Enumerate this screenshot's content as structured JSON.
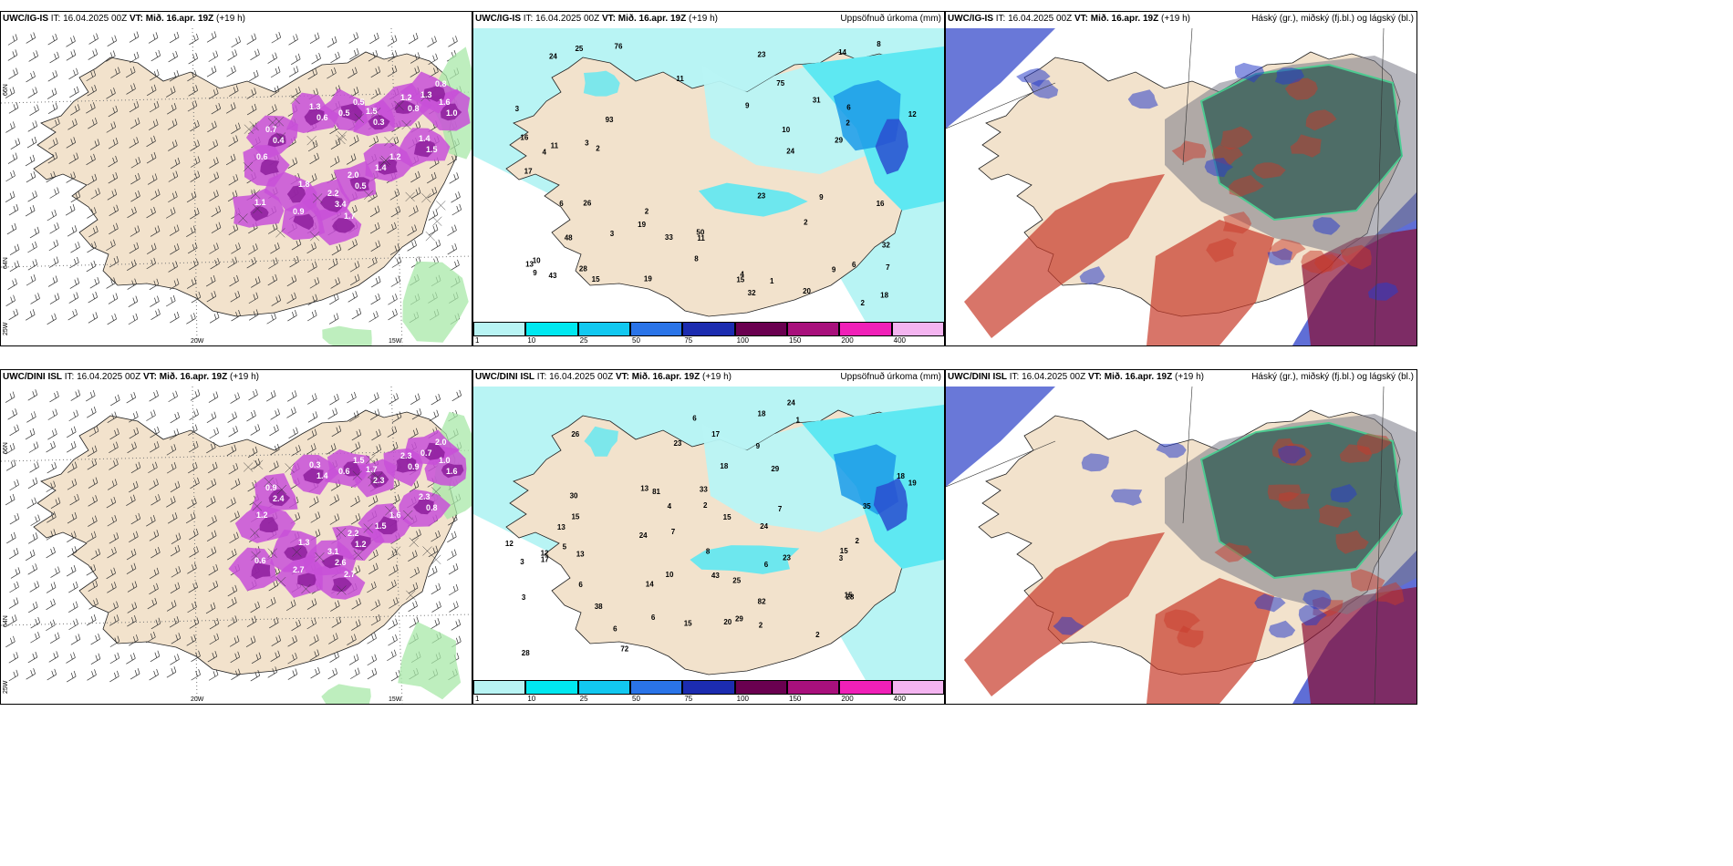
{
  "panels": [
    {
      "model": "UWC/IG-IS",
      "it": "IT: 16.04.2025 00Z",
      "vt_label": "VT:",
      "vt": "Mið. 16.apr. 19Z",
      "lead": "(+19 h)",
      "right_title": ""
    },
    {
      "model": "UWC/IG-IS",
      "it": "IT: 16.04.2025 00Z",
      "vt_label": "VT:",
      "vt": "Mið. 16.apr. 19Z",
      "lead": "(+19 h)",
      "right_title": "Uppsöfnuð úrkoma (mm)"
    },
    {
      "model": "UWC/IG-IS",
      "it": "IT: 16.04.2025 00Z",
      "vt_label": "VT:",
      "vt": "Mið. 16.apr. 19Z",
      "lead": "(+19 h)",
      "right_title": "Háský (gr.), miðský (fj.bl.) og lágský (bl.)"
    },
    {
      "model": "UWC/DINI ISL",
      "it": "IT: 16.04.2025 00Z",
      "vt_label": "VT:",
      "vt": "Mið. 16.apr. 19Z",
      "lead": "(+19 h)",
      "right_title": ""
    },
    {
      "model": "UWC/DINI ISL",
      "it": "IT: 16.04.2025 00Z",
      "vt_label": "VT:",
      "vt": "Mið. 16.apr. 19Z",
      "lead": "(+19 h)",
      "right_title": "Uppsöfnuð úrkoma (mm)"
    },
    {
      "model": "UWC/DINI ISL",
      "it": "IT: 16.04.2025 00Z",
      "vt_label": "VT:",
      "vt": "Mið. 16.apr. 19Z",
      "lead": "(+19 h)",
      "right_title": "Háský (gr.), miðský (fj.bl.) og lágský (bl.)"
    }
  ],
  "graticule": {
    "lon_labels": [
      "20W",
      "15W"
    ],
    "lat_labels": [
      "66N",
      "64N"
    ],
    "left_lon": "25W"
  },
  "precip_legend": {
    "labels": [
      "1",
      "10",
      "25",
      "50",
      "75",
      "100",
      "150",
      "200",
      "400"
    ],
    "colors": [
      "#b8f4f4",
      "#00e8f0",
      "#12c8f0",
      "#2a74e8",
      "#1c2cb0",
      "#6a0050",
      "#a8107c",
      "#f020b8",
      "#f4b4f0"
    ]
  },
  "colors": {
    "land": "#f2e2cc",
    "precip_light": "#b8f4f4",
    "precip_mid": "#5ee8f2",
    "precip_heavy": "#1c9ae8",
    "snow": "#c850d8",
    "rain": "#a8e8a8",
    "high_cloud": "#7a7a86",
    "mid_cloud": "#c83a2a",
    "low_cloud": "#2a3ec8"
  },
  "top_wind_values": [
    "0.7",
    "1.3",
    "0.5",
    "1.5",
    "1.2",
    "0.8",
    "1.6",
    "1.4",
    "1.2",
    "2.0",
    "2.2",
    "1.8",
    "0.6",
    "1.1",
    "1.7",
    "0.9",
    "0.4",
    "0.6",
    "0.5",
    "0.3",
    "0.8",
    "1.3",
    "1.0",
    "1.5",
    "1.4",
    "0.5",
    "3.4"
  ],
  "bot_wind_values": [
    "0.9",
    "0.3",
    "1.5",
    "1.7",
    "2.3",
    "2.0",
    "1.0",
    "2.3",
    "1.6",
    "2.2",
    "3.1",
    "1.3",
    "1.2",
    "0.6",
    "2.7",
    "2.7",
    "2.4",
    "1.4",
    "0.6",
    "2.3",
    "0.9",
    "0.7",
    "1.6",
    "0.8",
    "1.5",
    "1.2",
    "2.6"
  ],
  "top_precip_values": [
    "2",
    "2",
    "1",
    "3",
    "6",
    "24",
    "15",
    "10",
    "6",
    "13",
    "19",
    "33",
    "43",
    "32",
    "31",
    "16",
    "11",
    "25",
    "26",
    "19",
    "17",
    "18",
    "16",
    "20",
    "11",
    "9",
    "50",
    "93",
    "76",
    "75",
    "32",
    "29",
    "23",
    "14",
    "12",
    "10",
    "15",
    "24",
    "48",
    "28",
    "23",
    "11",
    "3",
    "9",
    "9",
    "4",
    "8",
    "9",
    "2",
    "2",
    "6",
    "3",
    "8",
    "2",
    "7",
    "4"
  ],
  "bot_precip_values": [
    "2",
    "6",
    "23",
    "15",
    "2",
    "6",
    "12",
    "18",
    "18",
    "23",
    "30",
    "38",
    "29",
    "43",
    "28",
    "17",
    "18",
    "24",
    "29",
    "15",
    "19",
    "17",
    "15",
    "13",
    "12",
    "15",
    "6",
    "20",
    "14",
    "82",
    "81",
    "72",
    "33",
    "35",
    "24",
    "25",
    "13",
    "15",
    "26",
    "13",
    "28",
    "24",
    "9",
    "7",
    "10",
    "3",
    "6",
    "7",
    "2",
    "2",
    "3",
    "6",
    "4",
    "5",
    "1",
    "8",
    "3"
  ]
}
